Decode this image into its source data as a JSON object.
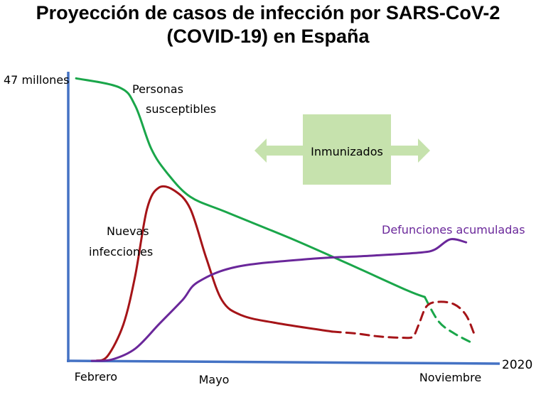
{
  "chart_data": {
    "type": "line",
    "title_lines": [
      "Proyección de casos de infección por SARS-CoV-2",
      "(COVID-19) en España"
    ],
    "y_top_label": "47 millones",
    "x_year_label": "2020",
    "x_tick_labels": [
      {
        "label": "Febrero",
        "month": 2
      },
      {
        "label": "Mayo",
        "month": 5
      },
      {
        "label": "Noviembre",
        "month": 11
      }
    ],
    "xlim": [
      1.3,
      12.2
    ],
    "ylim": [
      0,
      47
    ],
    "y_unit": "millones",
    "grid": false,
    "series": [
      {
        "label_lines": [
          "Personas",
          "susceptibles"
        ],
        "color": "#1aa64a",
        "solid": [
          [
            1.5,
            46.5
          ],
          [
            2.6,
            45
          ],
          [
            3.0,
            42
          ],
          [
            3.4,
            35
          ],
          [
            3.8,
            31
          ],
          [
            4.4,
            27
          ],
          [
            5.3,
            24.5
          ],
          [
            7.0,
            20
          ],
          [
            8.4,
            16
          ],
          [
            9.9,
            11.6
          ],
          [
            10.35,
            10.5
          ]
        ],
        "dashed": [
          [
            10.35,
            10.5
          ],
          [
            10.7,
            6.5
          ],
          [
            11.1,
            4.5
          ],
          [
            11.6,
            2.8
          ]
        ]
      },
      {
        "label_lines": [
          "Nuevas",
          "infecciones"
        ],
        "color": "#a51418",
        "solid": [
          [
            2.0,
            0
          ],
          [
            2.3,
            0.8
          ],
          [
            2.7,
            6
          ],
          [
            3.0,
            14
          ],
          [
            3.3,
            25
          ],
          [
            3.6,
            28.5
          ],
          [
            4.0,
            28
          ],
          [
            4.4,
            25
          ],
          [
            4.8,
            17
          ],
          [
            5.2,
            10
          ],
          [
            5.7,
            7.5
          ],
          [
            6.6,
            6.2
          ],
          [
            8.0,
            4.8
          ]
        ],
        "dashed": [
          [
            8.0,
            4.8
          ],
          [
            8.6,
            4.5
          ],
          [
            9.2,
            4.0
          ],
          [
            9.8,
            3.8
          ],
          [
            10.05,
            4.0
          ],
          [
            10.2,
            6
          ],
          [
            10.4,
            9
          ],
          [
            10.7,
            9.7
          ],
          [
            11.1,
            9.3
          ],
          [
            11.4,
            7.5
          ],
          [
            11.6,
            4.5
          ]
        ]
      },
      {
        "label": "Defunciones acumuladas",
        "color": "#6a279a",
        "solid": [
          [
            1.9,
            0
          ],
          [
            2.4,
            0.2
          ],
          [
            3.0,
            2
          ],
          [
            3.6,
            6
          ],
          [
            4.2,
            10
          ],
          [
            4.6,
            13
          ],
          [
            5.6,
            15.5
          ],
          [
            7.5,
            16.8
          ],
          [
            9.0,
            17.3
          ],
          [
            10.2,
            17.8
          ],
          [
            10.6,
            18.3
          ],
          [
            11.0,
            20
          ],
          [
            11.4,
            19.5
          ]
        ],
        "dashed": []
      }
    ],
    "annotation": {
      "label": "Inmunizados",
      "box_color": "#c6e2ad",
      "arrow_color": "#c6e2ad",
      "arrows": "left-right"
    }
  }
}
